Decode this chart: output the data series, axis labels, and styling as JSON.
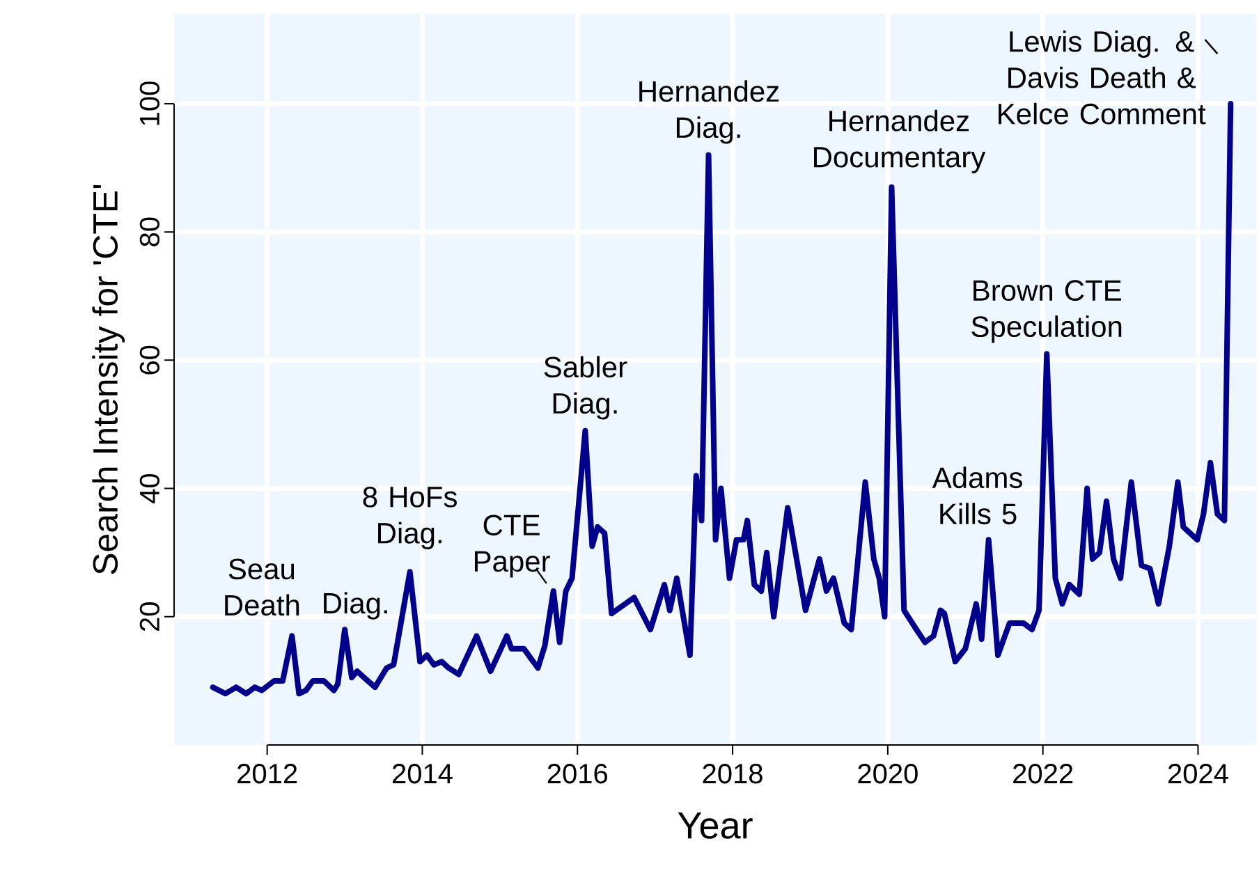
{
  "chart_data": {
    "type": "line",
    "xlabel": "Year",
    "ylabel": "Search Intensity for 'CTE'",
    "x": [
      2011.3,
      2011.46,
      2011.6,
      2011.73,
      2011.84,
      2011.93,
      2012.09,
      2012.2,
      2012.32,
      2012.41,
      2012.5,
      2012.59,
      2012.73,
      2012.86,
      2012.91,
      2013.0,
      2013.09,
      2013.16,
      2013.25,
      2013.39,
      2013.54,
      2013.63,
      2013.84,
      2013.97,
      2014.06,
      2014.15,
      2014.25,
      2014.34,
      2014.47,
      2014.7,
      2014.88,
      2015.09,
      2015.15,
      2015.31,
      2015.49,
      2015.58,
      2015.69,
      2015.77,
      2015.85,
      2015.93,
      2016.1,
      2016.19,
      2016.26,
      2016.35,
      2016.44,
      2016.73,
      2016.94,
      2017.12,
      2017.19,
      2017.28,
      2017.45,
      2017.53,
      2017.6,
      2017.69,
      2017.78,
      2017.85,
      2017.96,
      2018.05,
      2018.14,
      2018.19,
      2018.28,
      2018.37,
      2018.44,
      2018.53,
      2018.71,
      2018.94,
      2019.12,
      2019.21,
      2019.3,
      2019.44,
      2019.53,
      2019.71,
      2019.82,
      2019.89,
      2019.96,
      2020.05,
      2020.21,
      2020.37,
      2020.48,
      2020.59,
      2020.68,
      2020.73,
      2020.87,
      2021.0,
      2021.14,
      2021.21,
      2021.3,
      2021.42,
      2021.57,
      2021.75,
      2021.86,
      2021.95,
      2022.05,
      2022.16,
      2022.25,
      2022.34,
      2022.47,
      2022.57,
      2022.64,
      2022.73,
      2022.82,
      2022.91,
      2023.0,
      2023.14,
      2023.27,
      2023.38,
      2023.49,
      2023.63,
      2023.74,
      2023.81,
      2023.99,
      2024.07,
      2024.16,
      2024.25,
      2024.34,
      2024.42
    ],
    "series": [
      {
        "color": "#00008b",
        "values": [
          9,
          8,
          9,
          8,
          9,
          8.5,
          10,
          10,
          17,
          8,
          8.5,
          10,
          10,
          8.5,
          9.5,
          18,
          10.5,
          11.5,
          10.5,
          9,
          12,
          12.5,
          27,
          13,
          14,
          12.5,
          13,
          12,
          11,
          17,
          11.5,
          17,
          15,
          15,
          12,
          15.5,
          24,
          16,
          24,
          26,
          49,
          31,
          34,
          33,
          20.5,
          23,
          18,
          25,
          21,
          26,
          14,
          42,
          35,
          92,
          32,
          40,
          26,
          32,
          32,
          35,
          25,
          24,
          30,
          20,
          37,
          21,
          29,
          24,
          26,
          19,
          18,
          41,
          29,
          26,
          20,
          87,
          21,
          18,
          16,
          17,
          21,
          20.5,
          13,
          15,
          22,
          16.5,
          32,
          14,
          19,
          19,
          18,
          21,
          61,
          26,
          22,
          25,
          23.5,
          40,
          29,
          30,
          38,
          29,
          26,
          41,
          28,
          27.5,
          22,
          31,
          41,
          34,
          32,
          36,
          44,
          36,
          35,
          100
        ]
      }
    ],
    "xlim": [
      2010.8,
      2024.75
    ],
    "ylim": [
      0,
      114
    ],
    "xticks": [
      2012,
      2014,
      2016,
      2018,
      2020,
      2022,
      2024
    ],
    "yticks": [
      20,
      40,
      60,
      80,
      100
    ],
    "grid": true,
    "line_style": "solid",
    "annotations": [
      {
        "text": "Seau Death",
        "x": 2012.32,
        "y": 17
      },
      {
        "text": "Diag.",
        "x": 2013.0,
        "y": 18
      },
      {
        "text": "8 HoFs Diag.",
        "x": 2013.84,
        "y": 27
      },
      {
        "text": "CTE Paper",
        "x": 2015.69,
        "y": 24
      },
      {
        "text": "Sabler Diag.",
        "x": 2016.1,
        "y": 49
      },
      {
        "text": "Hernandez Diag.",
        "x": 2017.69,
        "y": 92
      },
      {
        "text": "Hernandez Documentary",
        "x": 2020.05,
        "y": 87
      },
      {
        "text": "Adams Kills 5",
        "x": 2021.3,
        "y": 32
      },
      {
        "text": "Brown CTE Speculation",
        "x": 2022.05,
        "y": 61
      },
      {
        "text": "Lewis Diag. & Davis Death & Kelce Comment",
        "x": 2024.42,
        "y": 100
      }
    ]
  }
}
